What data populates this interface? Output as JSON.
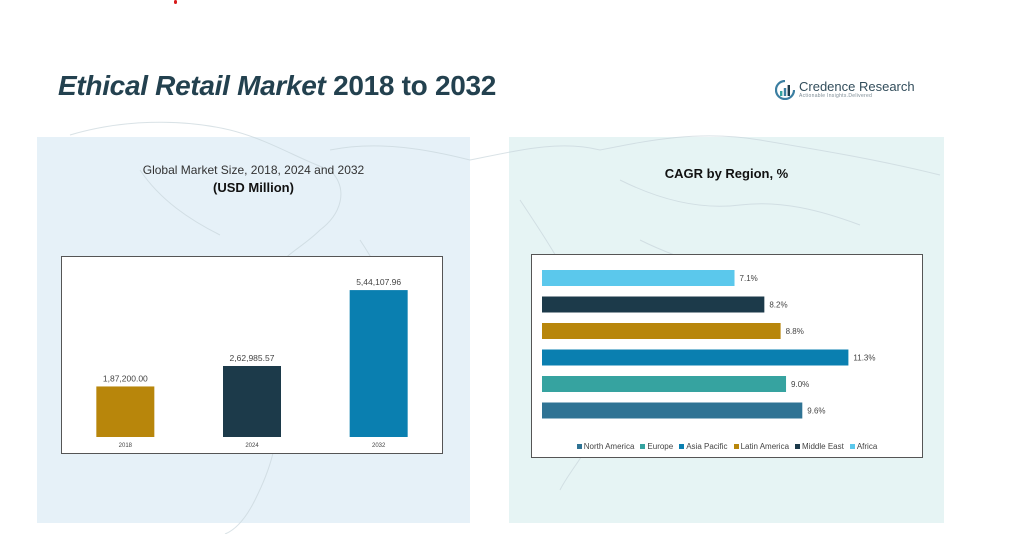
{
  "header": {
    "title_main": "Ethical Retail Market",
    "title_years": "2018 to 2032"
  },
  "logo": {
    "name": "Credence Research",
    "tagline": "Actionable Insights.Delivered",
    "icon": "credence-research-logo"
  },
  "left_panel": {
    "heading": "Global Market Size, 2018, 2024 and 2032",
    "subheading": "(USD Million)"
  },
  "right_panel": {
    "heading": "CAGR by Region, %"
  },
  "chart_data": [
    {
      "type": "bar",
      "categories": [
        "2018",
        "2024",
        "2032"
      ],
      "values": [
        187200.0,
        262985.57,
        544107.96
      ],
      "value_labels": [
        "1,87,200.00",
        "2,62,985.57",
        "5,44,107.96"
      ],
      "colors": [
        "#b8860b",
        "#1c3a4a",
        "#0a7fb0"
      ],
      "ylim": [
        0,
        600000
      ],
      "grid": false,
      "title": "",
      "xlabel": "",
      "ylabel": ""
    },
    {
      "type": "bar",
      "orientation": "horizontal",
      "categories": [
        "Africa",
        "Middle East",
        "Latin America",
        "Asia Pacific",
        "Europe",
        "North America"
      ],
      "values": [
        7.1,
        8.2,
        8.8,
        11.3,
        9.0,
        9.6
      ],
      "value_labels": [
        "7.1%",
        "8.2%",
        "8.8%",
        "11.3%",
        "9.0%",
        "9.6%"
      ],
      "colors": [
        "#5bc8ec",
        "#1c3a4a",
        "#b8860b",
        "#0a7fb0",
        "#36a3a0",
        "#2f7394"
      ],
      "xlim": [
        0,
        12
      ],
      "legend": {
        "position": "bottom",
        "entries": [
          "North America",
          "Europe",
          "Asia Pacific",
          "Latin America",
          "Middle East",
          "Africa"
        ],
        "colors": [
          "#2f7394",
          "#36a3a0",
          "#0a7fb0",
          "#b8860b",
          "#1c3a4a",
          "#5bc8ec"
        ]
      },
      "grid": false,
      "title": "",
      "xlabel": "",
      "ylabel": ""
    }
  ]
}
